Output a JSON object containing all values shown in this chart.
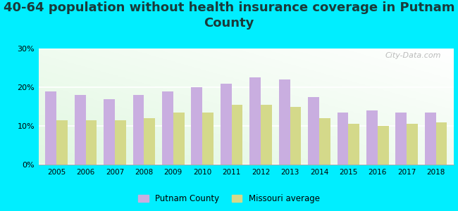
{
  "title": "40-64 population without health insurance coverage in Putnam\nCounty",
  "years": [
    2005,
    2006,
    2007,
    2008,
    2009,
    2010,
    2011,
    2012,
    2013,
    2014,
    2015,
    2016,
    2017,
    2018
  ],
  "putnam": [
    19.0,
    18.0,
    17.0,
    18.0,
    19.0,
    20.0,
    21.0,
    22.5,
    22.0,
    17.5,
    13.5,
    14.0,
    13.5,
    13.5
  ],
  "missouri": [
    11.5,
    11.5,
    11.5,
    12.0,
    13.5,
    13.5,
    15.5,
    15.5,
    15.0,
    12.0,
    10.5,
    10.0,
    10.5,
    11.0
  ],
  "putnam_color": "#c9aee0",
  "missouri_color": "#d4d98a",
  "background_color": "#00eeff",
  "ylim": [
    0,
    30
  ],
  "yticks": [
    0,
    10,
    20,
    30
  ],
  "bar_width": 0.38,
  "legend_putnam": "Putnam County",
  "legend_missouri": "Missouri average",
  "title_fontsize": 13,
  "title_color": "#1a3a3a",
  "watermark": "City-Data.com"
}
